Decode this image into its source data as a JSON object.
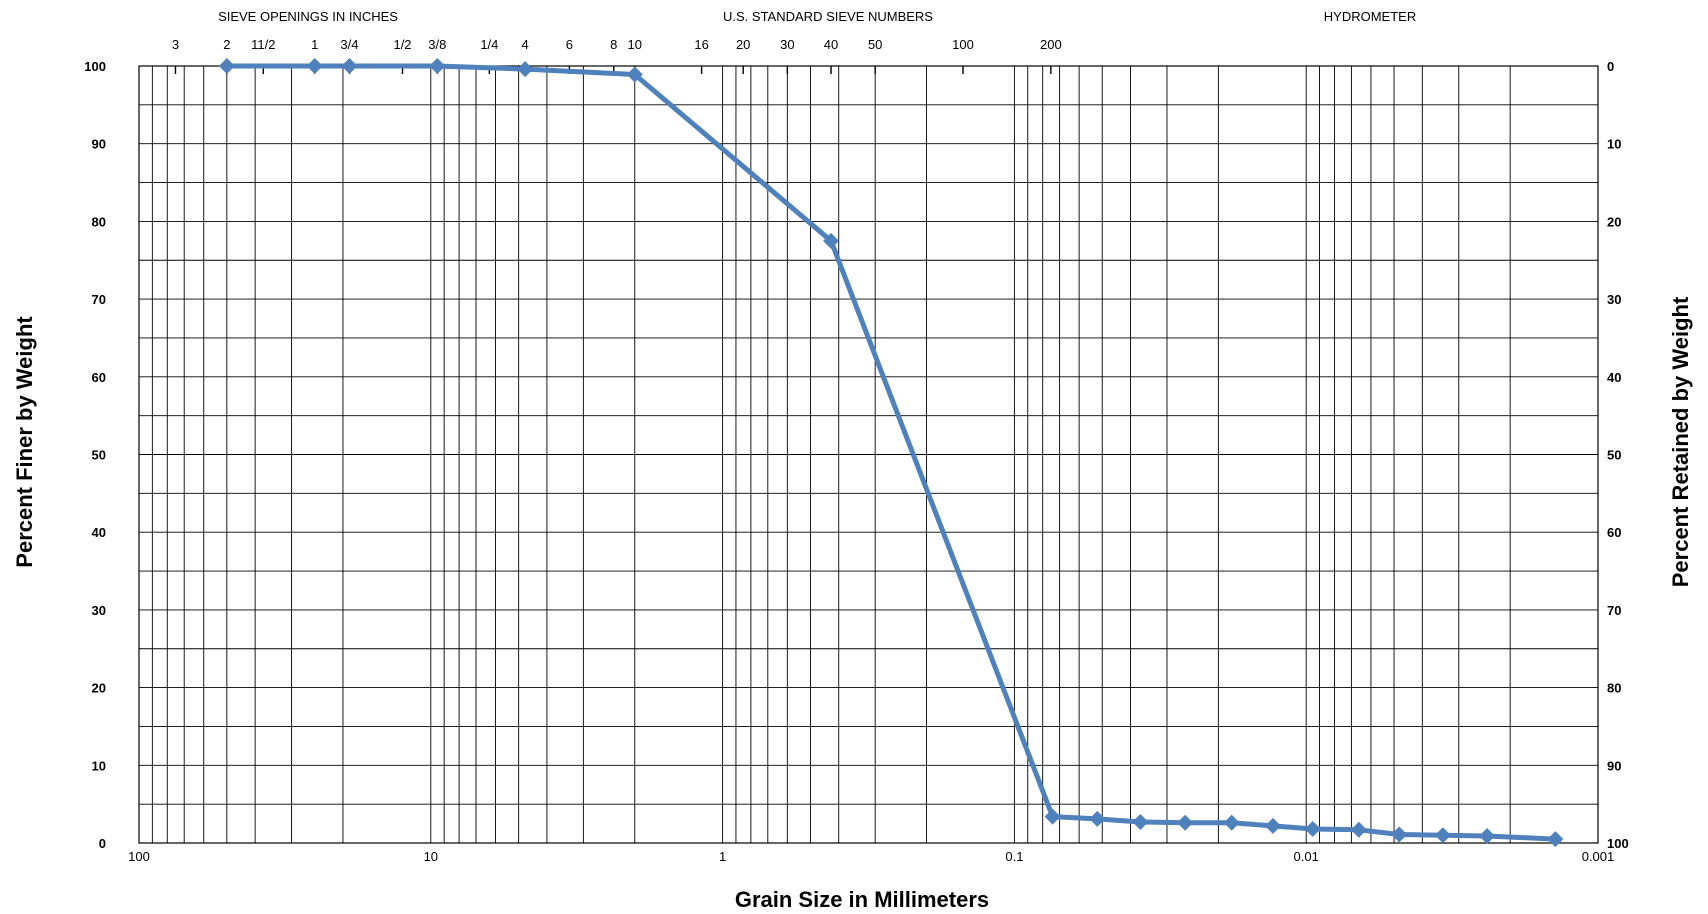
{
  "chart_data": {
    "type": "line",
    "title": "",
    "xlabel": "Grain Size in Millimeters",
    "ylabel": "Percent Finer by Weight",
    "y2label": "Percent Retained by Weight",
    "x_scale": "log",
    "x_reversed": true,
    "xlim": [
      100,
      0.001
    ],
    "ylim": [
      0,
      100
    ],
    "grid": true,
    "legend": "none",
    "line_color": "#4F81BD",
    "x_tick_labels": [
      {
        "value": 100,
        "label": "100"
      },
      {
        "value": 10,
        "label": "10"
      },
      {
        "value": 1,
        "label": "1"
      },
      {
        "value": 0.1,
        "label": "0.1"
      },
      {
        "value": 0.01,
        "label": "0.01"
      },
      {
        "value": 0.001,
        "label": "0.001"
      }
    ],
    "y_left_ticks": [
      0,
      10,
      20,
      30,
      40,
      50,
      60,
      70,
      80,
      90,
      100
    ],
    "y_right_ticks": [
      0,
      10,
      20,
      30,
      40,
      50,
      60,
      70,
      80,
      90,
      100
    ],
    "top_headers": [
      "SIEVE OPENINGS IN INCHES",
      "U.S. STANDARD SIEVE NUMBERS",
      "HYDROMETER"
    ],
    "top_sieves": [
      {
        "label": "3",
        "mm": 75
      },
      {
        "label": "2",
        "mm": 50
      },
      {
        "label": "11/2",
        "mm": 37.5
      },
      {
        "label": "1",
        "mm": 25
      },
      {
        "label": "3/4",
        "mm": 19
      },
      {
        "label": "1/2",
        "mm": 12.5
      },
      {
        "label": "3/8",
        "mm": 9.5
      },
      {
        "label": "1/4",
        "mm": 6.3
      },
      {
        "label": "4",
        "mm": 4.75
      },
      {
        "label": "6",
        "mm": 3.35
      },
      {
        "label": "8",
        "mm": 2.36
      },
      {
        "label": "10",
        "mm": 2.0
      },
      {
        "label": "16",
        "mm": 1.18
      },
      {
        "label": "20",
        "mm": 0.85
      },
      {
        "label": "30",
        "mm": 0.6
      },
      {
        "label": "40",
        "mm": 0.425
      },
      {
        "label": "50",
        "mm": 0.3
      },
      {
        "label": "100",
        "mm": 0.15
      },
      {
        "label": "200",
        "mm": 0.075
      }
    ],
    "series": [
      {
        "x": [
          50,
          25,
          19,
          9.5,
          4.75,
          2.0,
          0.425,
          0.074,
          0.052,
          0.037,
          0.026,
          0.018,
          0.013,
          0.0095,
          0.0066,
          0.0048,
          0.0034,
          0.0024,
          0.0014
        ],
        "y": [
          100,
          100,
          100,
          100,
          99.6,
          98.9,
          77.5,
          3.4,
          3.1,
          2.7,
          2.6,
          2.6,
          2.2,
          1.8,
          1.7,
          1.1,
          1.0,
          0.9,
          0.5
        ]
      }
    ]
  }
}
